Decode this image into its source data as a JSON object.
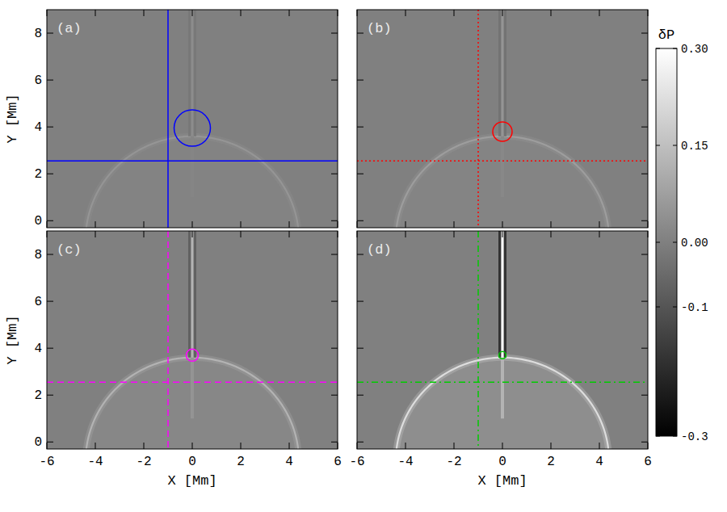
{
  "chart_data": {
    "type": "heatmap",
    "x_label": "X [Mm]",
    "y_label": "Y [Mm]",
    "xlim": [
      -6,
      6
    ],
    "ylim": [
      -0.3,
      9
    ],
    "xticks": [
      -6,
      -4,
      -2,
      0,
      2,
      4,
      6
    ],
    "yticks": [
      0,
      2,
      4,
      6,
      8
    ],
    "colorbar": {
      "title": "δP",
      "range": [
        -0.3,
        0.3
      ],
      "ticks": [
        {
          "value": 0.3,
          "label": "0.30"
        },
        0.15,
        {
          "value": 0,
          "label": "0.00"
        },
        -0.1,
        -0.3
      ]
    },
    "wave_front": {
      "center_x": 0,
      "center_y": -0.8,
      "radius": 4.4
    },
    "panels": [
      {
        "label": "(a)",
        "color": "#0000ff",
        "line_style": "solid",
        "circle": {
          "x": 0,
          "y": 3.95,
          "r": 0.75
        },
        "cross": {
          "x": -1,
          "y": 2.55
        },
        "front_amplitude": 0.05,
        "jet_amplitude": 0.03
      },
      {
        "label": "(b)",
        "color": "#ff0000",
        "line_style": "dotted",
        "circle": {
          "x": 0,
          "y": 3.8,
          "r": 0.4
        },
        "cross": {
          "x": -1,
          "y": 2.55
        },
        "front_amplitude": 0.07,
        "jet_amplitude": 0.05
      },
      {
        "label": "(c)",
        "color": "#ff00ff",
        "line_style": "dashed",
        "circle": {
          "x": 0,
          "y": 3.7,
          "r": 0.25
        },
        "cross": {
          "x": -1,
          "y": 2.55
        },
        "front_amplitude": 0.12,
        "jet_amplitude": 0.12
      },
      {
        "label": "(d)",
        "color": "#00cc00",
        "line_style": "dashdot",
        "circle": {
          "x": 0,
          "y": 3.7,
          "r": 0.15
        },
        "cross": {
          "x": -1,
          "y": 2.55
        },
        "front_amplitude": 0.22,
        "jet_amplitude": 0.3
      }
    ]
  }
}
